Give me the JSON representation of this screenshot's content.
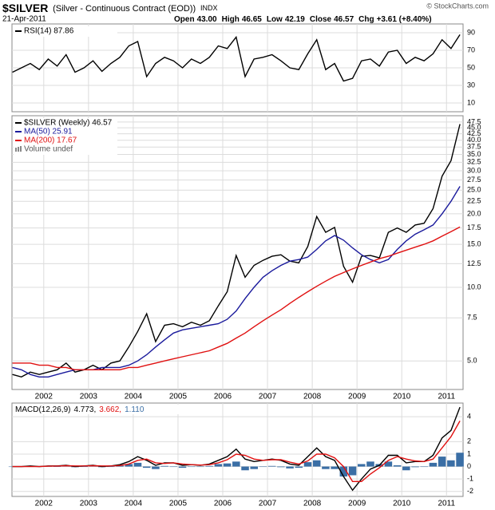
{
  "header": {
    "symbol": "$SILVER",
    "name": "(Silver - Continuous Contract (EOD))",
    "exchange": "INDX",
    "date": "21-Apr-2011",
    "quote": [
      {
        "label": "Open",
        "value": "43.00"
      },
      {
        "label": "High",
        "value": "46.65"
      },
      {
        "label": "Low",
        "value": "42.19"
      },
      {
        "label": "Close",
        "value": "46.57"
      },
      {
        "label": "Chg",
        "value": "+3.61 (+8.40%)"
      }
    ],
    "credit": "© StockCharts.com"
  },
  "chart_data": [
    {
      "type": "line",
      "grid": true,
      "ylim": [
        0,
        100
      ],
      "yticks": [
        10,
        30,
        50,
        70,
        90
      ],
      "xlim": [
        2001.29,
        2011.37
      ],
      "x": [
        2001.3,
        2001.5,
        2001.7,
        2001.9,
        2002.1,
        2002.3,
        2002.5,
        2002.7,
        2002.9,
        2003.1,
        2003.3,
        2003.5,
        2003.7,
        2003.9,
        2004.1,
        2004.3,
        2004.5,
        2004.7,
        2004.9,
        2005.1,
        2005.3,
        2005.5,
        2005.7,
        2005.9,
        2006.1,
        2006.3,
        2006.5,
        2006.7,
        2006.9,
        2007.1,
        2007.3,
        2007.5,
        2007.7,
        2007.9,
        2008.1,
        2008.3,
        2008.5,
        2008.7,
        2008.9,
        2009.1,
        2009.3,
        2009.5,
        2009.7,
        2009.9,
        2010.1,
        2010.3,
        2010.5,
        2010.7,
        2010.9,
        2011.1,
        2011.3
      ],
      "series": [
        {
          "name": "RSI(14) 87.86",
          "color": "#000000",
          "values": [
            45,
            50,
            55,
            48,
            60,
            52,
            65,
            45,
            50,
            58,
            46,
            55,
            62,
            75,
            80,
            40,
            55,
            62,
            58,
            50,
            60,
            55,
            62,
            75,
            72,
            85,
            40,
            60,
            62,
            65,
            58,
            50,
            48,
            66,
            82,
            48,
            55,
            35,
            38,
            58,
            60,
            52,
            68,
            70,
            55,
            62,
            58,
            66,
            82,
            72,
            87.86
          ]
        }
      ]
    },
    {
      "type": "line",
      "grid": true,
      "log_scale": true,
      "ylim": [
        3.82,
        50.4
      ],
      "xlim": [
        2001.29,
        2011.37
      ],
      "yticks": [
        {
          "value": 5,
          "label": "5.0"
        },
        {
          "value": 7.5,
          "label": "7.5"
        },
        {
          "value": 10,
          "label": "10.0"
        },
        {
          "value": 12.5,
          "label": "12.5"
        },
        {
          "value": 15,
          "label": "15.0"
        },
        {
          "value": 17.5,
          "label": "17.5"
        },
        {
          "value": 20,
          "label": "20.0"
        },
        {
          "value": 22.5,
          "label": "22.5"
        },
        {
          "value": 25,
          "label": "25.0"
        },
        {
          "value": 27.5,
          "label": "27.5"
        },
        {
          "value": 30,
          "label": "30.0"
        },
        {
          "value": 32.5,
          "label": "32.5"
        },
        {
          "value": 35,
          "label": "35.0"
        },
        {
          "value": 37.5,
          "label": "37.5"
        },
        {
          "value": 40,
          "label": "40.0"
        },
        {
          "value": 42.5,
          "label": "42.5"
        },
        {
          "value": 45,
          "label": "45.0"
        },
        {
          "value": 47.5,
          "label": "47.5"
        }
      ],
      "xticks": [
        2002,
        2003,
        2004,
        2005,
        2006,
        2007,
        2008,
        2009,
        2010,
        2011
      ],
      "volume_label": "Volume undef",
      "x": [
        2001.3,
        2001.5,
        2001.7,
        2001.9,
        2002.1,
        2002.3,
        2002.5,
        2002.7,
        2002.9,
        2003.1,
        2003.3,
        2003.5,
        2003.7,
        2003.9,
        2004.1,
        2004.3,
        2004.5,
        2004.7,
        2004.9,
        2005.1,
        2005.3,
        2005.5,
        2005.7,
        2005.9,
        2006.1,
        2006.3,
        2006.5,
        2006.7,
        2006.9,
        2007.1,
        2007.3,
        2007.5,
        2007.7,
        2007.9,
        2008.1,
        2008.3,
        2008.5,
        2008.7,
        2008.9,
        2009.1,
        2009.3,
        2009.5,
        2009.7,
        2009.9,
        2010.1,
        2010.3,
        2010.5,
        2010.7,
        2010.9,
        2011.1,
        2011.3
      ],
      "series": [
        {
          "name": "$SILVER (Weekly) 46.57",
          "color": "#000000",
          "values": [
            4.4,
            4.3,
            4.5,
            4.4,
            4.5,
            4.6,
            4.9,
            4.5,
            4.6,
            4.8,
            4.6,
            4.9,
            5.0,
            5.7,
            6.6,
            7.8,
            6.0,
            7.0,
            7.1,
            6.9,
            7.2,
            7.0,
            7.3,
            8.4,
            9.6,
            13.5,
            11.0,
            12.3,
            12.9,
            13.4,
            13.6,
            12.8,
            12.6,
            14.7,
            19.5,
            16.8,
            17.6,
            12.2,
            10.5,
            13.4,
            13.5,
            13.2,
            16.8,
            17.5,
            16.8,
            18.0,
            18.3,
            21.0,
            28.5,
            33.0,
            46.57
          ]
        },
        {
          "name": "MA(50) 25.91",
          "color": "#1a1a9c",
          "values": [
            4.7,
            4.6,
            4.4,
            4.3,
            4.3,
            4.4,
            4.5,
            4.6,
            4.6,
            4.6,
            4.7,
            4.7,
            4.7,
            4.8,
            5.0,
            5.3,
            5.7,
            6.1,
            6.5,
            6.7,
            6.8,
            6.9,
            7.0,
            7.1,
            7.4,
            8.0,
            9.0,
            10.0,
            11.0,
            11.7,
            12.3,
            12.8,
            13.0,
            13.3,
            14.3,
            15.5,
            16.3,
            15.6,
            14.5,
            13.6,
            13.0,
            12.6,
            13.0,
            14.3,
            15.5,
            16.5,
            17.2,
            18.0,
            20.0,
            22.5,
            25.91
          ]
        },
        {
          "name": "MA(200) 17.67",
          "color": "#e01010",
          "values": [
            4.9,
            4.9,
            4.9,
            4.8,
            4.8,
            4.7,
            4.7,
            4.6,
            4.6,
            4.6,
            4.6,
            4.6,
            4.6,
            4.7,
            4.7,
            4.8,
            4.9,
            5.0,
            5.1,
            5.2,
            5.3,
            5.4,
            5.5,
            5.7,
            5.9,
            6.2,
            6.5,
            6.9,
            7.3,
            7.7,
            8.1,
            8.6,
            9.1,
            9.6,
            10.1,
            10.6,
            11.1,
            11.5,
            11.9,
            12.3,
            12.7,
            13.1,
            13.4,
            13.8,
            14.2,
            14.6,
            15.0,
            15.5,
            16.2,
            16.9,
            17.67
          ]
        }
      ]
    },
    {
      "type": "line",
      "grid": true,
      "title": "MACD(12,26,9)",
      "ylim": [
        -2.4,
        5.1
      ],
      "yticks": [
        -2,
        -1,
        0,
        1,
        2,
        4
      ],
      "xlim": [
        2001.29,
        2011.37
      ],
      "xticks": [
        2002,
        2003,
        2004,
        2005,
        2006,
        2007,
        2008,
        2009,
        2010,
        2011
      ],
      "x": [
        2001.3,
        2001.5,
        2001.7,
        2001.9,
        2002.1,
        2002.3,
        2002.5,
        2002.7,
        2002.9,
        2003.1,
        2003.3,
        2003.5,
        2003.7,
        2003.9,
        2004.1,
        2004.3,
        2004.5,
        2004.7,
        2004.9,
        2005.1,
        2005.3,
        2005.5,
        2005.7,
        2005.9,
        2006.1,
        2006.3,
        2006.5,
        2006.7,
        2006.9,
        2007.1,
        2007.3,
        2007.5,
        2007.7,
        2007.9,
        2008.1,
        2008.3,
        2008.5,
        2008.7,
        2008.9,
        2009.1,
        2009.3,
        2009.5,
        2009.7,
        2009.9,
        2010.1,
        2010.3,
        2010.5,
        2010.7,
        2010.9,
        2011.1,
        2011.3
      ],
      "series": [
        {
          "name": "1.110",
          "color": "#3a6ea5",
          "type": "bar",
          "values": [
            0,
            0,
            0.05,
            0,
            0.02,
            0.01,
            0.03,
            -0.05,
            0,
            0.03,
            -0.05,
            0,
            0.07,
            0.2,
            0.3,
            -0.1,
            -0.2,
            0.05,
            0,
            -0.1,
            0,
            -0.02,
            0.05,
            0.2,
            0.25,
            0.4,
            -0.3,
            -0.2,
            0,
            0.05,
            -0.05,
            -0.15,
            -0.1,
            0.35,
            0.5,
            -0.2,
            -0.2,
            -0.8,
            -0.7,
            0.2,
            0.4,
            0.2,
            0.4,
            0.1,
            -0.3,
            -0.05,
            0,
            0.3,
            0.8,
            0.5,
            1.11
          ]
        },
        {
          "name": "4.773,",
          "color": "#000000",
          "values": [
            0,
            0,
            0.05,
            0,
            0.05,
            0.05,
            0.1,
            0,
            0.05,
            0.1,
            0,
            0.05,
            0.15,
            0.4,
            0.8,
            0.5,
            0.1,
            0.3,
            0.3,
            0.1,
            0.15,
            0.1,
            0.2,
            0.5,
            0.8,
            1.4,
            0.6,
            0.4,
            0.5,
            0.6,
            0.5,
            0.2,
            0.1,
            0.8,
            1.5,
            0.8,
            0.5,
            -0.8,
            -1.9,
            -1.0,
            -0.2,
            0.1,
            0.9,
            0.9,
            0.3,
            0.4,
            0.4,
            0.9,
            2.3,
            2.9,
            4.773
          ]
        },
        {
          "name": "3.662,",
          "color": "#e01010",
          "values": [
            0,
            0,
            0,
            0,
            0.03,
            0.04,
            0.07,
            0.05,
            0.05,
            0.07,
            0.05,
            0.05,
            0.08,
            0.2,
            0.5,
            0.6,
            0.3,
            0.25,
            0.3,
            0.2,
            0.15,
            0.12,
            0.15,
            0.3,
            0.55,
            1.0,
            0.9,
            0.6,
            0.5,
            0.55,
            0.55,
            0.35,
            0.2,
            0.45,
            1.0,
            1.0,
            0.7,
            0.0,
            -1.2,
            -1.2,
            -0.6,
            -0.1,
            0.5,
            0.8,
            0.6,
            0.45,
            0.4,
            0.6,
            1.5,
            2.4,
            3.662
          ]
        }
      ]
    }
  ]
}
